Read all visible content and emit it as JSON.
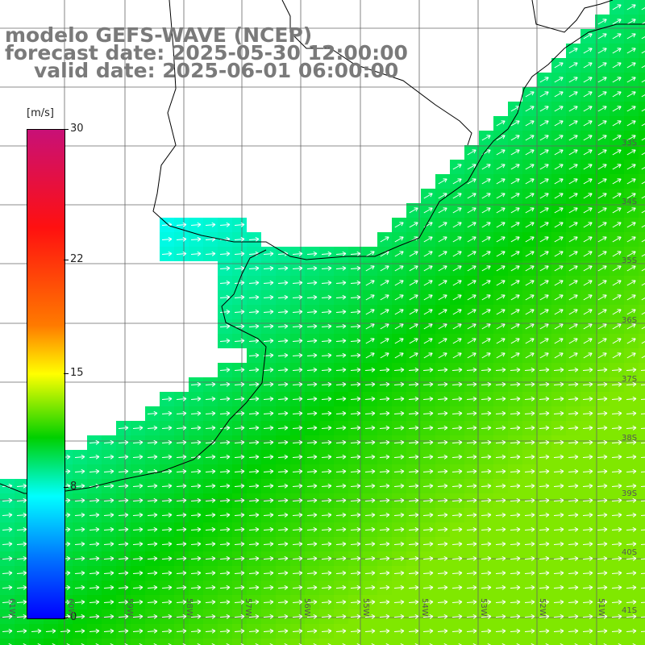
{
  "title": {
    "line1": "modelo GEFS-WAVE (NCEP)",
    "line2": "forecast date: 2025-05-30 12:00:00",
    "line3": "valid date: 2025-06-01 06:00:00"
  },
  "colorbar": {
    "unit": "[m/s]",
    "min": 0,
    "max": 30,
    "ticks": [
      "30",
      "22",
      "15",
      "8",
      "0"
    ],
    "tick_values": [
      30,
      22,
      15,
      8,
      0
    ],
    "colors": [
      "#0000ff",
      "#0070ff",
      "#00ffff",
      "#00d000",
      "#ffff00",
      "#ff7a00",
      "#ff1010",
      "#c81077"
    ]
  },
  "grid": {
    "lat_labels": [
      "33S",
      "34S",
      "35S",
      "36S",
      "37S",
      "38S",
      "39S",
      "40S",
      "41S"
    ],
    "lon_labels": [
      "61W",
      "60W",
      "59W",
      "58W",
      "57W",
      "56W",
      "55W",
      "54W",
      "53W",
      "52W",
      "51W"
    ]
  },
  "wind_field": {
    "description_direction": "arrows toward east / northeast",
    "speed_range_ms": [
      5,
      13
    ]
  }
}
